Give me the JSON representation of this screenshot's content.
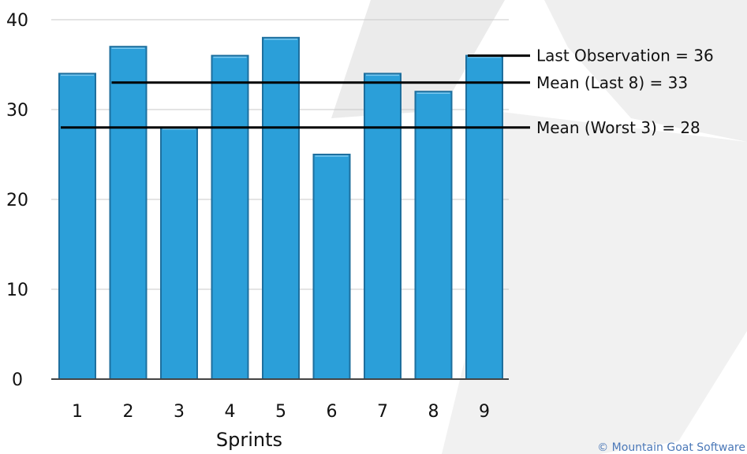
{
  "chart_data": {
    "type": "bar",
    "categories": [
      "1",
      "2",
      "3",
      "4",
      "5",
      "6",
      "7",
      "8",
      "9"
    ],
    "values": [
      34,
      37,
      28,
      36,
      38,
      25,
      34,
      32,
      36
    ],
    "xlabel": "Sprints",
    "ylabel": "",
    "ylim": [
      0,
      40
    ],
    "yticks": [
      "0",
      "10",
      "20",
      "30",
      "40"
    ],
    "grid": true,
    "bar_color": "#2b9fd9",
    "bar_edge_color": "#1e6f9e",
    "reference_lines": [
      {
        "label": "Last Observation = 36",
        "value": 36,
        "from_category": 9
      },
      {
        "label": "Mean (Last 8) = 33",
        "value": 33,
        "from_category": 2
      },
      {
        "label": "Mean (Worst 3) = 28",
        "value": 28,
        "from_category": 1
      }
    ]
  },
  "footer": {
    "copyright": "© Mountain Goat Software"
  }
}
